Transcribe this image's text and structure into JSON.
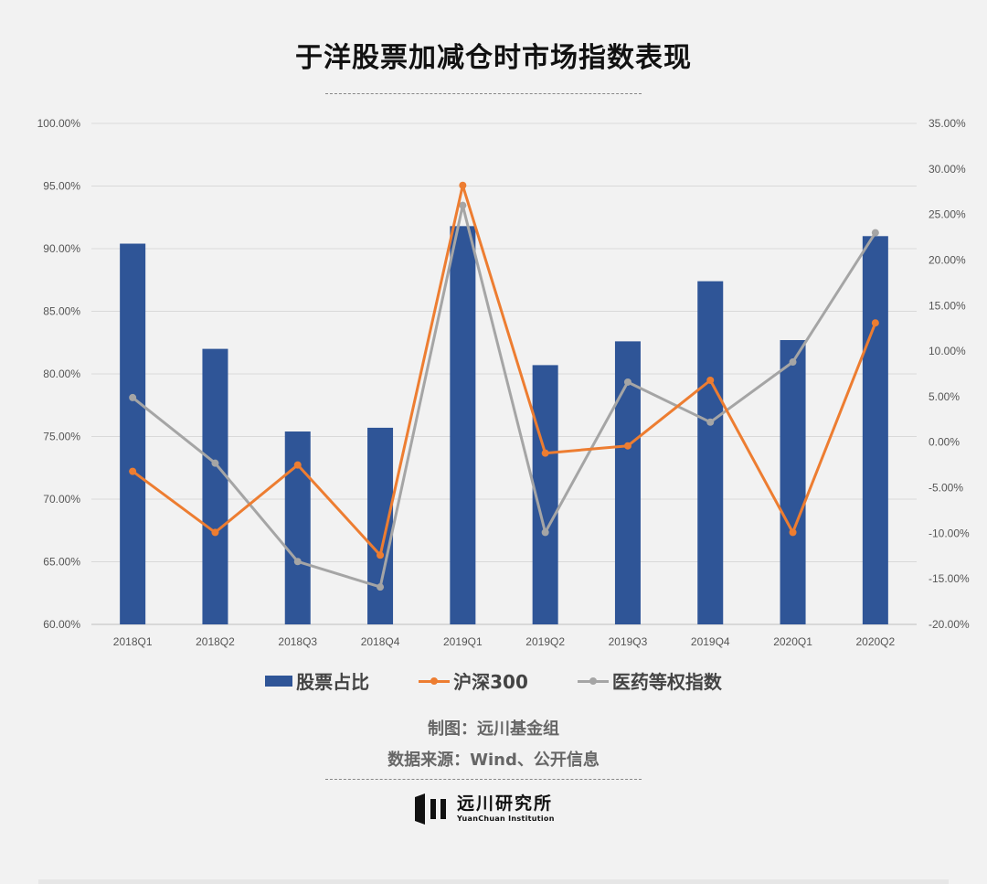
{
  "title": "于洋股票加减仓时市场指数表现",
  "chart_data": {
    "type": "bar",
    "categories": [
      "2018Q1",
      "2018Q2",
      "2018Q3",
      "2018Q4",
      "2019Q1",
      "2019Q2",
      "2019Q3",
      "2019Q4",
      "2020Q1",
      "2020Q2"
    ],
    "left_axis": {
      "ylim": [
        0.6,
        1.0
      ],
      "ticks": [
        "60.00%",
        "65.00%",
        "70.00%",
        "75.00%",
        "80.00%",
        "85.00%",
        "90.00%",
        "95.00%",
        "100.00%"
      ]
    },
    "right_axis": {
      "ylim": [
        -0.2,
        0.35
      ],
      "ticks": [
        "-20.00%",
        "-15.00%",
        "-10.00%",
        "-5.00%",
        "0.00%",
        "5.00%",
        "10.00%",
        "15.00%",
        "20.00%",
        "25.00%",
        "30.00%",
        "35.00%"
      ]
    },
    "grid": true,
    "legend_position": "bottom",
    "series": [
      {
        "name": "股票占比",
        "type": "bar",
        "axis": "left",
        "color": "#2f5597",
        "values": [
          0.904,
          0.82,
          0.754,
          0.757,
          0.918,
          0.807,
          0.826,
          0.874,
          0.827,
          0.91
        ]
      },
      {
        "name": "沪深300",
        "type": "line",
        "axis": "right",
        "color": "#ed7d31",
        "values": [
          -0.032,
          -0.099,
          -0.025,
          -0.124,
          0.282,
          -0.012,
          -0.004,
          0.068,
          -0.099,
          0.131
        ]
      },
      {
        "name": "医药等权指数",
        "type": "line",
        "axis": "right",
        "color": "#a5a5a5",
        "values": [
          0.049,
          -0.023,
          -0.131,
          -0.159,
          0.26,
          -0.099,
          0.066,
          0.022,
          0.088,
          0.23
        ]
      }
    ]
  },
  "credits": {
    "line1": "制图：远川基金组",
    "line2": "数据来源：Wind、公开信息"
  },
  "logo": {
    "cn": "远川研究所",
    "en": "YuanChuan Institution"
  }
}
